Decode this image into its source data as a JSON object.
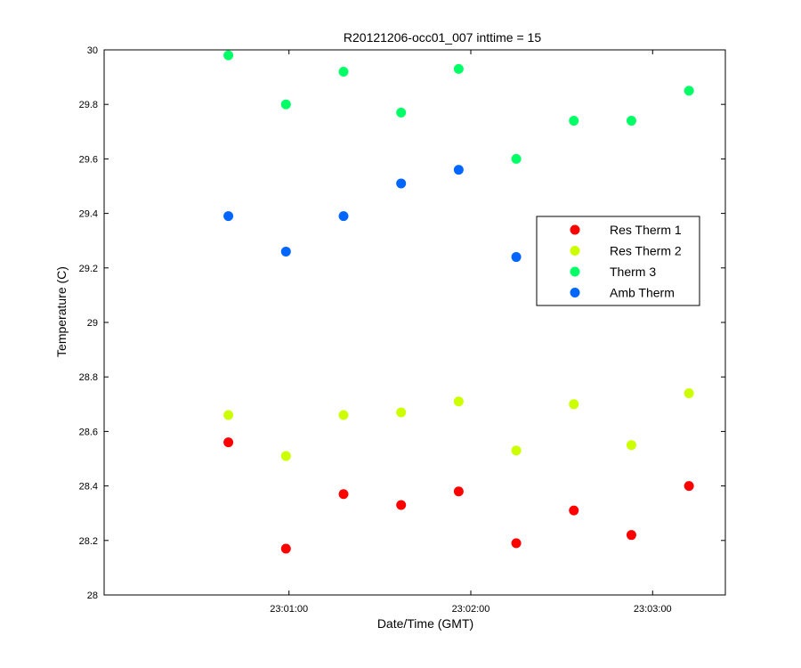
{
  "chart_data": {
    "type": "scatter",
    "title": "R20121206-occ01_007 inttime = 15",
    "xlabel": "Date/Time (GMT)",
    "ylabel": "Temperature (C)",
    "ylim": [
      28,
      30
    ],
    "xlim": [
      "22:59:59",
      "23:03:24"
    ],
    "yticks": [
      "28",
      "28.2",
      "28.4",
      "28.6",
      "28.8",
      "29",
      "29.2",
      "29.4",
      "29.6",
      "29.8",
      "30"
    ],
    "xticks": [
      {
        "t": "23:01:00",
        "label": "23:01:00"
      },
      {
        "t": "23:02:00",
        "label": "23:02:00"
      },
      {
        "t": "23:03:00",
        "label": "23:03:00"
      }
    ],
    "x": [
      "23:00:40",
      "23:00:59",
      "23:01:18",
      "23:01:37",
      "23:01:56",
      "23:02:15",
      "23:02:34",
      "23:02:53",
      "23:03:12"
    ],
    "series": [
      {
        "name": "Res Therm 1",
        "color": "#ff0000",
        "points": [
          [
            0,
            28.56
          ],
          [
            1,
            28.17
          ],
          [
            2,
            28.37
          ],
          [
            3,
            28.33
          ],
          [
            4,
            28.38
          ],
          [
            5,
            28.19
          ],
          [
            6,
            28.31
          ],
          [
            7,
            28.22
          ],
          [
            8,
            28.4
          ]
        ]
      },
      {
        "name": "Res Therm 2",
        "color": "#ccff00",
        "points": [
          [
            0,
            28.66
          ],
          [
            1,
            28.51
          ],
          [
            2,
            28.66
          ],
          [
            3,
            28.67
          ],
          [
            4,
            28.71
          ],
          [
            5,
            28.53
          ],
          [
            6,
            28.7
          ],
          [
            7,
            28.55
          ],
          [
            8,
            28.74
          ]
        ]
      },
      {
        "name": "Therm 3",
        "color": "#00ff66",
        "points": [
          [
            0,
            29.98
          ],
          [
            1,
            29.8
          ],
          [
            2,
            29.92
          ],
          [
            3,
            29.77
          ],
          [
            4,
            29.93
          ],
          [
            5,
            29.6
          ],
          [
            6,
            29.74
          ],
          [
            7,
            29.74
          ],
          [
            8,
            29.85
          ]
        ]
      },
      {
        "name": "Amb Therm",
        "color": "#0066ff",
        "points": [
          [
            0,
            29.39
          ],
          [
            1,
            29.26
          ],
          [
            2,
            29.39
          ],
          [
            3,
            29.51
          ],
          [
            4,
            29.56
          ],
          [
            5,
            29.24
          ],
          [
            8,
            29.37
          ]
        ]
      }
    ],
    "legend": "inside-right",
    "grid": false
  }
}
